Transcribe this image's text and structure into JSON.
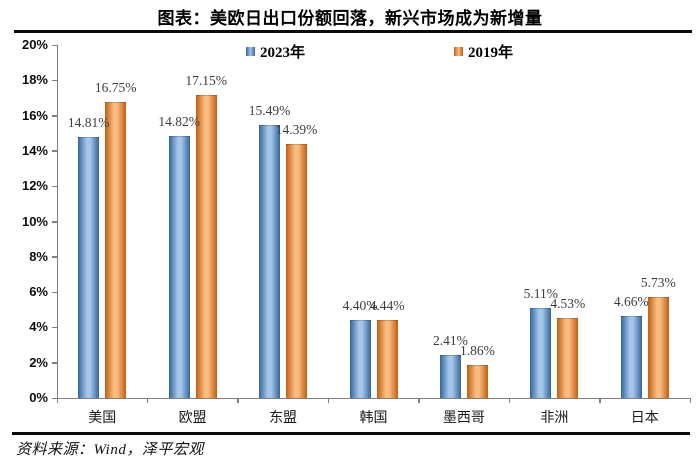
{
  "title": "图表：美欧日出口份额回落，新兴市场成为新增量",
  "source": "资料来源：Wind，泽平宏观",
  "chart_data": {
    "type": "bar",
    "title": "图表：美欧日出口份额回落，新兴市场成为新增量",
    "categories": [
      "美国",
      "欧盟",
      "东盟",
      "韩国",
      "墨西哥",
      "非洲",
      "日本"
    ],
    "series": [
      {
        "name": "2023年",
        "values": [
          14.81,
          14.82,
          15.49,
          4.4,
          2.41,
          5.11,
          4.66
        ],
        "color": "#5b8ec4",
        "color_edge": "#35659c",
        "color_mid": "#a3c6e8"
      },
      {
        "name": "2019年",
        "values": [
          16.75,
          17.15,
          14.39,
          4.44,
          1.86,
          4.53,
          5.73
        ],
        "color": "#ed8b3a",
        "color_edge": "#c05f11",
        "color_mid": "#f9bb80"
      }
    ],
    "xlabel": "",
    "ylabel": "",
    "ylim": [
      0,
      20
    ],
    "ytick_step": 2,
    "yticks": [
      "0%",
      "2%",
      "4%",
      "6%",
      "8%",
      "10%",
      "12%",
      "14%",
      "16%",
      "18%",
      "20%"
    ],
    "grid": false,
    "legend_position": "top-center",
    "value_label_format": "0.00%",
    "axis_color": "#7f7f7f"
  }
}
